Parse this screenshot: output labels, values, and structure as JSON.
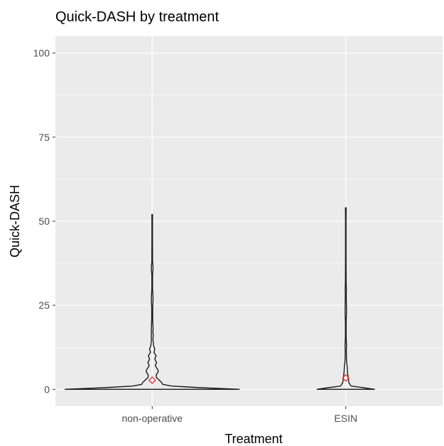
{
  "chart_data": {
    "type": "violin",
    "title": "Quick-DASH by treatment",
    "xlabel": "Treatment",
    "ylabel": "Quick-DASH",
    "ylim": [
      -5,
      105
    ],
    "y_ticks": [
      0,
      25,
      50,
      75,
      100
    ],
    "y_tick_labels": [
      "0",
      "25",
      "50",
      "75",
      "100"
    ],
    "grid": true,
    "legend": "none",
    "categories": [
      "non-operative",
      "ESIN"
    ],
    "series": [
      {
        "category": "non-operative",
        "range": [
          0,
          52
        ],
        "mean_marker": 2.7,
        "density": [
          [
            0,
            1.0
          ],
          [
            0.5,
            0.55
          ],
          [
            1,
            0.22
          ],
          [
            1.5,
            0.12
          ],
          [
            2,
            0.11
          ],
          [
            2.5,
            0.09
          ],
          [
            3,
            0.07
          ],
          [
            3.5,
            0.05
          ],
          [
            4,
            0.045
          ],
          [
            4.5,
            0.05
          ],
          [
            5,
            0.065
          ],
          [
            5.5,
            0.07
          ],
          [
            6,
            0.06
          ],
          [
            7,
            0.035
          ],
          [
            8,
            0.05
          ],
          [
            9,
            0.03
          ],
          [
            10,
            0.045
          ],
          [
            11,
            0.02
          ],
          [
            12,
            0.03
          ],
          [
            13,
            0.015
          ],
          [
            14,
            0.012
          ],
          [
            15,
            0.008
          ],
          [
            16,
            0.012
          ],
          [
            17,
            0.008
          ],
          [
            18,
            0.01
          ],
          [
            20,
            0.006
          ],
          [
            24,
            0.005
          ],
          [
            27,
            0.01
          ],
          [
            30,
            0.004
          ],
          [
            34,
            0.004
          ],
          [
            36,
            0.01
          ],
          [
            38,
            0.004
          ],
          [
            45,
            0.003
          ],
          [
            50,
            0.003
          ],
          [
            52,
            0.004
          ]
        ]
      },
      {
        "category": "ESIN",
        "range": [
          0,
          54
        ],
        "mean_marker": 3.4,
        "density": [
          [
            0,
            0.33
          ],
          [
            0.5,
            0.2
          ],
          [
            1,
            0.06
          ],
          [
            2,
            0.035
          ],
          [
            3,
            0.03
          ],
          [
            4,
            0.025
          ],
          [
            5,
            0.02
          ],
          [
            6,
            0.018
          ],
          [
            7,
            0.015
          ],
          [
            8,
            0.01
          ],
          [
            9,
            0.008
          ],
          [
            10,
            0.007
          ],
          [
            12,
            0.006
          ],
          [
            13,
            0.009
          ],
          [
            14,
            0.006
          ],
          [
            16,
            0.004
          ],
          [
            20,
            0.004
          ],
          [
            22,
            0.007
          ],
          [
            24,
            0.008
          ],
          [
            26,
            0.006
          ],
          [
            28,
            0.005
          ],
          [
            30,
            0.007
          ],
          [
            32,
            0.004
          ],
          [
            40,
            0.003
          ],
          [
            50,
            0.003
          ],
          [
            54,
            0.004
          ]
        ]
      }
    ],
    "colors": {
      "panel": "#ebebeb",
      "grid": "#ffffff",
      "outline": "#1a1a1a",
      "mean_marker": "#e8312a"
    }
  }
}
